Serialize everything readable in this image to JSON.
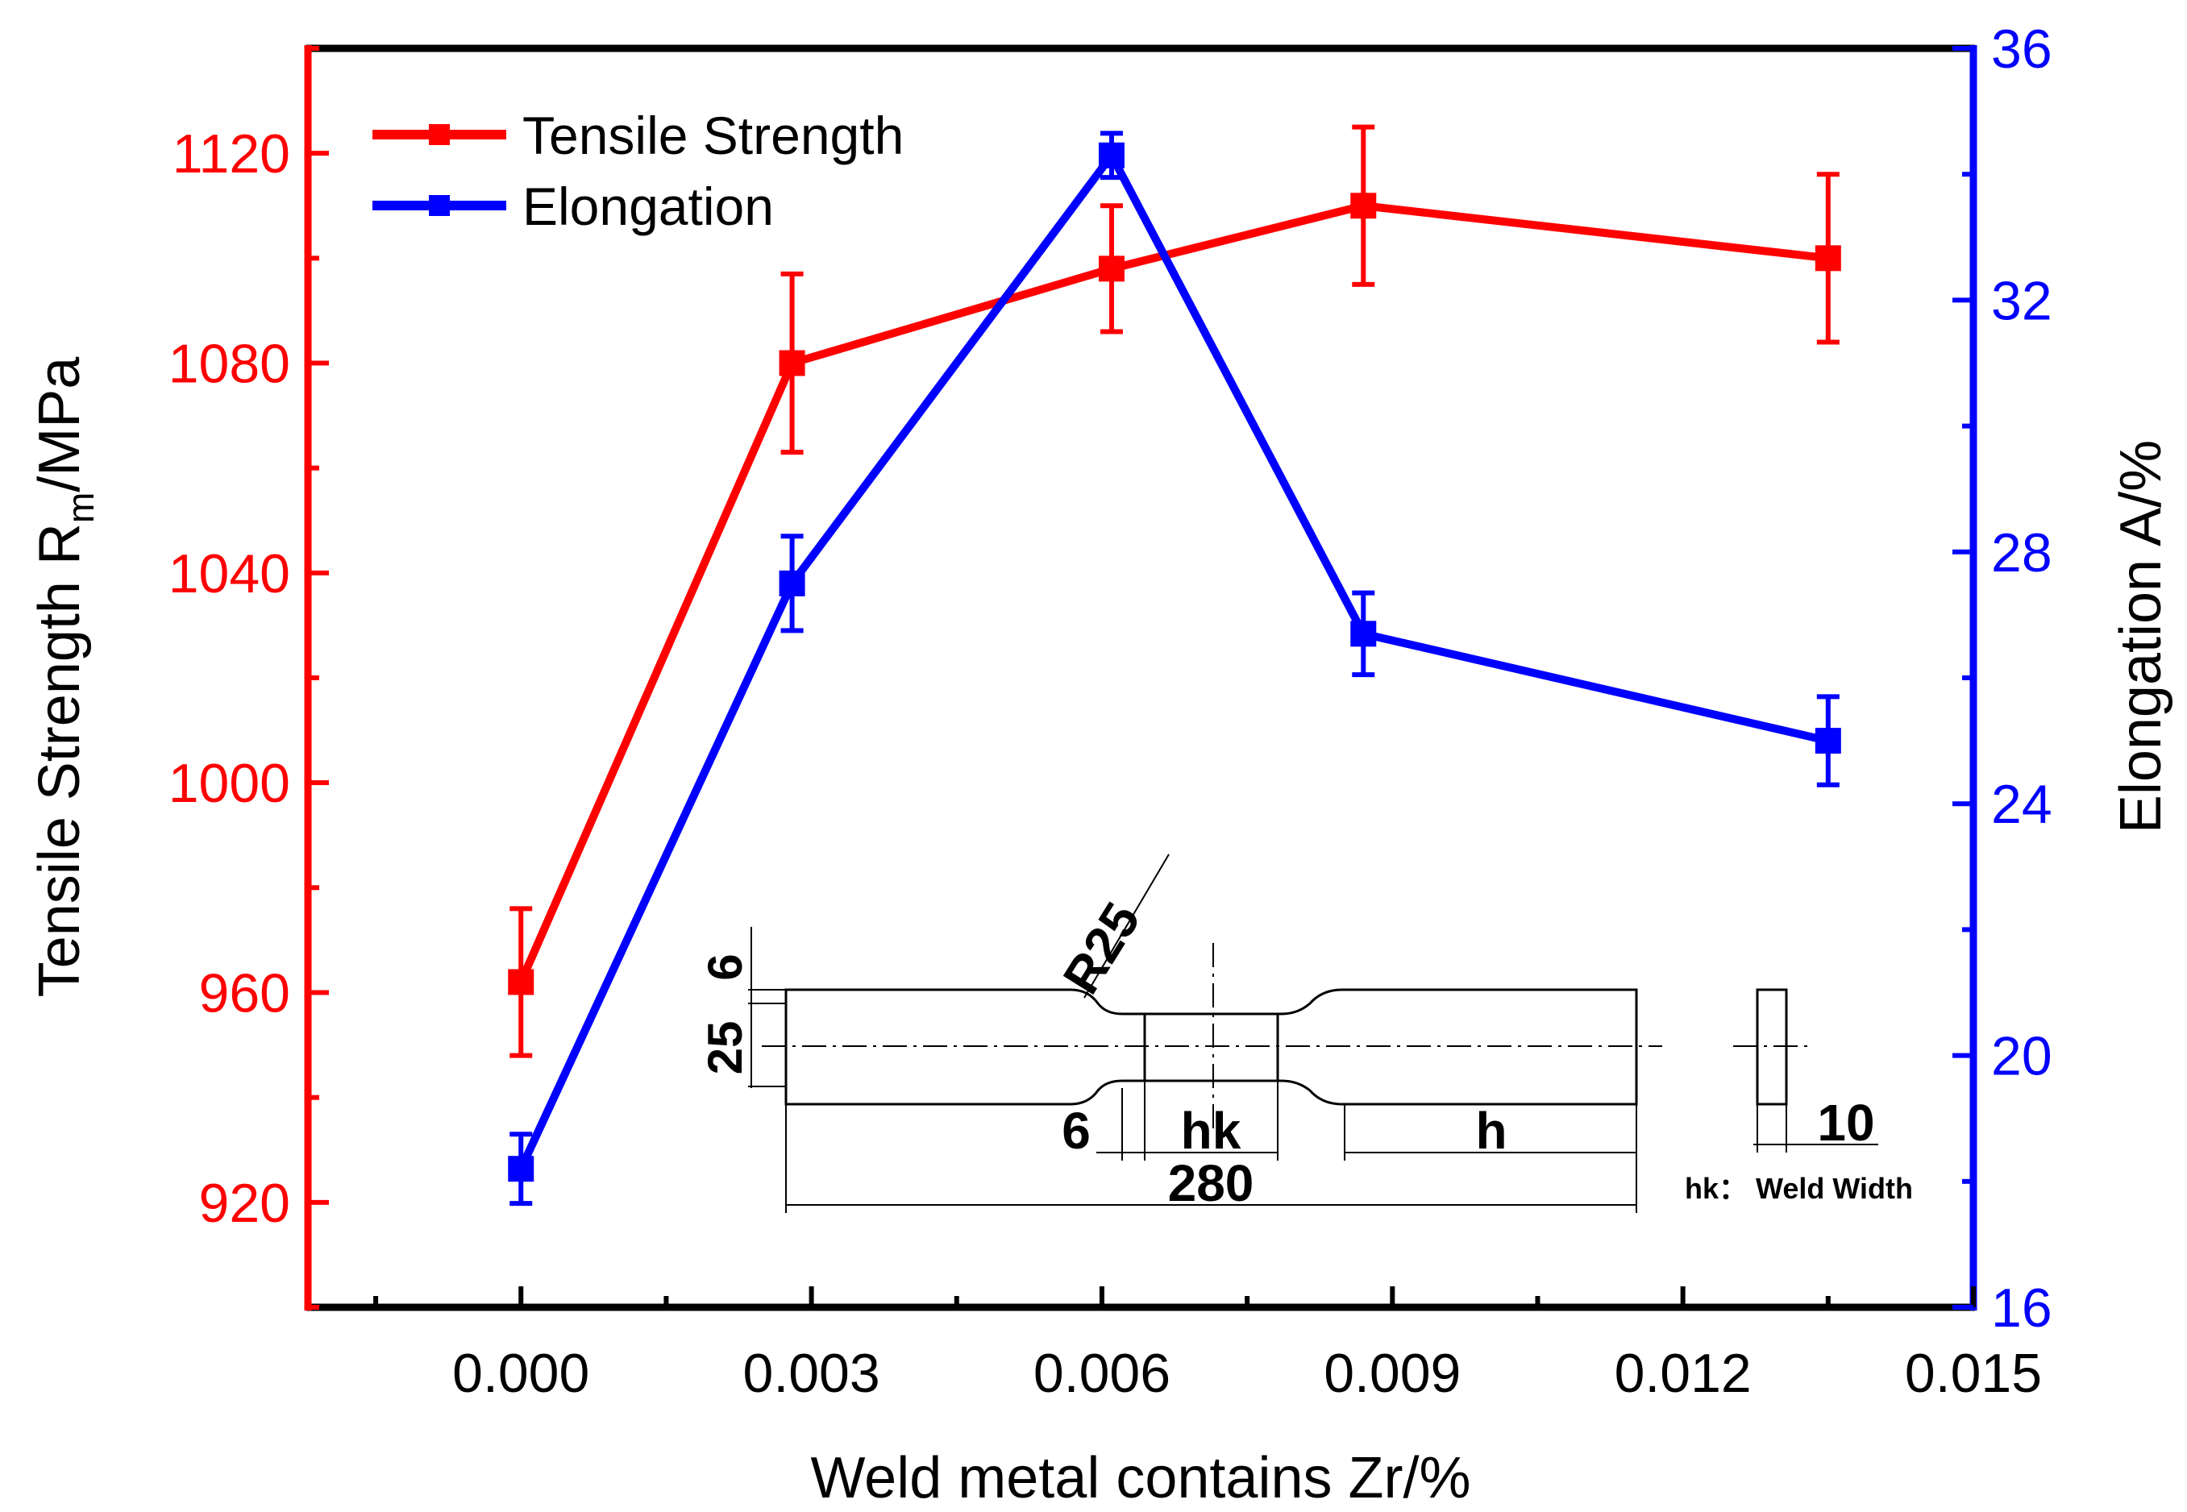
{
  "chart_data": {
    "type": "line",
    "title": "",
    "xlabel": "Weld metal contains Zr/%",
    "ylabel_left": {
      "main": "Tensile Strength R",
      "sub": "m",
      "tail": "/MPa"
    },
    "ylabel_right": "Elongation A/%",
    "xlim": [
      -0.0022,
      0.015
    ],
    "x_ticks": [
      0.0,
      0.003,
      0.006,
      0.009,
      0.012,
      0.015
    ],
    "x_tick_labels": [
      "0.000",
      "0.003",
      "0.006",
      "0.009",
      "0.012",
      "0.015"
    ],
    "ylim_left": [
      900,
      1140
    ],
    "y_left_ticks": [
      920,
      960,
      1000,
      1040,
      1080,
      1120
    ],
    "y_left_tick_labels": [
      "920",
      "960",
      "1000",
      "1040",
      "1080",
      "1120"
    ],
    "ylim_right": [
      16,
      36
    ],
    "y_right_ticks": [
      16,
      20,
      24,
      28,
      32,
      36
    ],
    "y_right_tick_labels": [
      "16",
      "20",
      "24",
      "28",
      "32",
      "36"
    ],
    "legend_position": "top-left",
    "series": [
      {
        "name": "Tensile Strength",
        "axis": "left",
        "color": "#ff0000",
        "x": [
          0.0,
          0.0028,
          0.0061,
          0.0087,
          0.0135
        ],
        "values": [
          962,
          1080,
          1098,
          1110,
          1100
        ],
        "errors": [
          14,
          17,
          12,
          15,
          16
        ]
      },
      {
        "name": "Elongation",
        "axis": "right",
        "color": "#0000ff",
        "x": [
          0.0,
          0.0028,
          0.0061,
          0.0087,
          0.0135
        ],
        "values": [
          18.2,
          27.5,
          34.3,
          26.7,
          25.0
        ],
        "errors": [
          0.55,
          0.75,
          0.35,
          0.65,
          0.7
        ]
      }
    ],
    "inset": {
      "description_labels": [
        "6",
        "25",
        "R25",
        "6",
        "hk",
        "280",
        "h",
        "10"
      ],
      "note": "hk： Weld Width"
    }
  }
}
